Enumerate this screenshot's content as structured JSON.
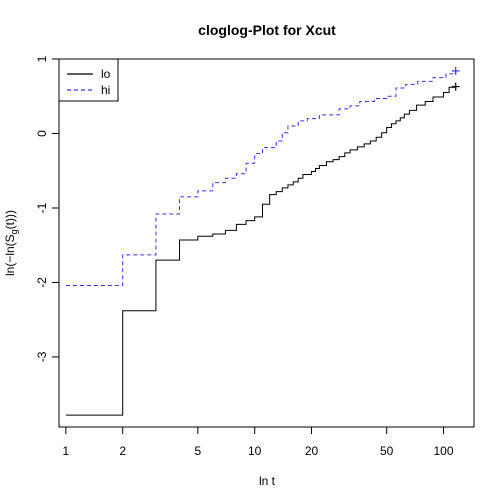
{
  "chart_data": {
    "type": "line",
    "title": "cloglog-Plot for Xcut",
    "xlabel": "ln t",
    "ylabel_main": "ln(−ln(S",
    "ylabel_sub": "g",
    "ylabel_tail": "(t)))",
    "x_scale": "log",
    "xlim": [
      0.92,
      145
    ],
    "ylim": [
      -3.94,
      1.0
    ],
    "x_ticks": [
      {
        "value": 1,
        "label": "1"
      },
      {
        "value": 2,
        "label": "2"
      },
      {
        "value": 5,
        "label": "5"
      },
      {
        "value": 10,
        "label": "10"
      },
      {
        "value": 20,
        "label": "20"
      },
      {
        "value": 50,
        "label": "50"
      },
      {
        "value": 100,
        "label": "100"
      }
    ],
    "y_ticks": [
      {
        "value": -3,
        "label": "-3"
      },
      {
        "value": -2,
        "label": "-2"
      },
      {
        "value": -1,
        "label": "-1"
      },
      {
        "value": 0,
        "label": "0"
      },
      {
        "value": 1,
        "label": "1"
      }
    ],
    "grid": false,
    "legend_position": "top-left",
    "series": [
      {
        "name": "lo",
        "color": "#000000",
        "dash": "solid",
        "step": true,
        "end_marker": "+",
        "points": [
          [
            1,
            -3.78
          ],
          [
            2,
            -2.38
          ],
          [
            3,
            -1.7
          ],
          [
            4,
            -1.43
          ],
          [
            5,
            -1.38
          ],
          [
            6,
            -1.35
          ],
          [
            7,
            -1.3
          ],
          [
            8,
            -1.22
          ],
          [
            9,
            -1.17
          ],
          [
            10,
            -1.12
          ],
          [
            11,
            -0.95
          ],
          [
            12,
            -0.82
          ],
          [
            13,
            -0.78
          ],
          [
            14,
            -0.73
          ],
          [
            15,
            -0.69
          ],
          [
            16,
            -0.65
          ],
          [
            17,
            -0.6
          ],
          [
            18,
            -0.55
          ],
          [
            20,
            -0.51
          ],
          [
            21,
            -0.47
          ],
          [
            22,
            -0.43
          ],
          [
            24,
            -0.38
          ],
          [
            26,
            -0.35
          ],
          [
            28,
            -0.31
          ],
          [
            30,
            -0.26
          ],
          [
            32,
            -0.22
          ],
          [
            35,
            -0.18
          ],
          [
            38,
            -0.14
          ],
          [
            41,
            -0.1
          ],
          [
            44,
            -0.05
          ],
          [
            47,
            0.01
          ],
          [
            50,
            0.08
          ],
          [
            53,
            0.13
          ],
          [
            56,
            0.17
          ],
          [
            59,
            0.21
          ],
          [
            62,
            0.26
          ],
          [
            66,
            0.31
          ],
          [
            72,
            0.38
          ],
          [
            80,
            0.43
          ],
          [
            88,
            0.49
          ],
          [
            100,
            0.55
          ],
          [
            107,
            0.62
          ],
          [
            116,
            0.63
          ]
        ]
      },
      {
        "name": "hi",
        "color": "#3333ff",
        "dash": "dashed",
        "step": true,
        "end_marker": "+",
        "points": [
          [
            1,
            -2.04
          ],
          [
            2,
            -1.63
          ],
          [
            3,
            -1.08
          ],
          [
            4,
            -0.85
          ],
          [
            5,
            -0.77
          ],
          [
            6,
            -0.66
          ],
          [
            7,
            -0.6
          ],
          [
            8,
            -0.54
          ],
          [
            9,
            -0.4
          ],
          [
            10,
            -0.27
          ],
          [
            11,
            -0.19
          ],
          [
            13,
            -0.1
          ],
          [
            14,
            0.01
          ],
          [
            15,
            0.1
          ],
          [
            17,
            0.17
          ],
          [
            19,
            0.2
          ],
          [
            22,
            0.25
          ],
          [
            28,
            0.33
          ],
          [
            32,
            0.37
          ],
          [
            36,
            0.43
          ],
          [
            43,
            0.47
          ],
          [
            50,
            0.5
          ],
          [
            56,
            0.61
          ],
          [
            63,
            0.66
          ],
          [
            73,
            0.7
          ],
          [
            88,
            0.75
          ],
          [
            103,
            0.8
          ],
          [
            116,
            0.84
          ]
        ]
      }
    ]
  }
}
